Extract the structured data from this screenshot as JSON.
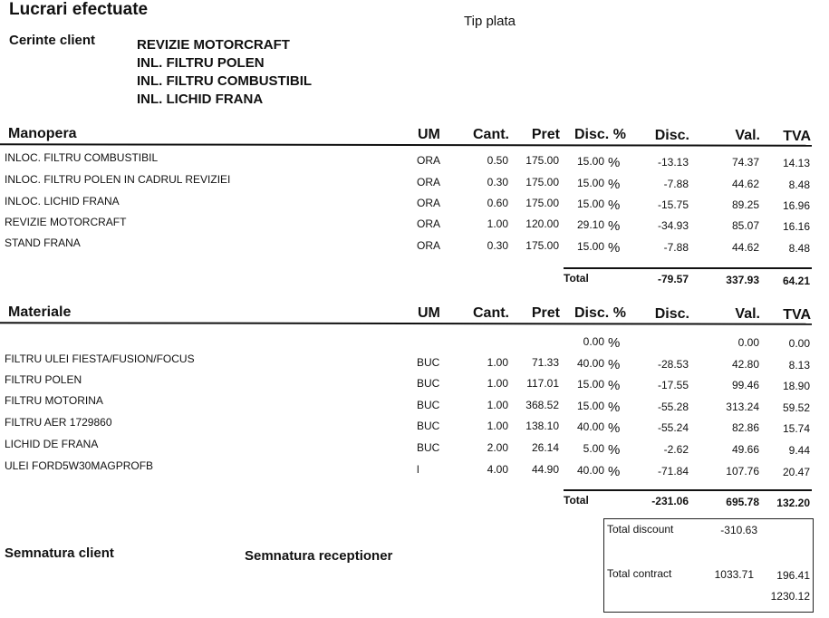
{
  "header": {
    "title": "Lucrari efectuate",
    "payment_type_label": "Tip plata",
    "client_requests_label": "Cerinte client",
    "client_requests": [
      "REVIZIE MOTORCRAFT",
      "INL. FILTRU POLEN",
      "INL. FILTRU COMBUSTIBIL",
      "INL. LICHID FRANA"
    ]
  },
  "columns": {
    "um": "UM",
    "cant": "Cant.",
    "pret": "Pret",
    "disc_pct": "Disc. %",
    "disc": "Disc.",
    "val": "Val.",
    "tva": "TVA"
  },
  "labor": {
    "title": "Manopera",
    "rows": [
      {
        "name": "INLOC. FILTRU COMBUSTIBIL",
        "um": "ORA",
        "cant": "0.50",
        "pret": "175.00",
        "disc_pct": "15.00",
        "pct": "%",
        "disc": "-13.13",
        "val": "74.37",
        "tva": "14.13"
      },
      {
        "name": "INLOC. FILTRU POLEN IN CADRUL REVIZIEI",
        "um": "ORA",
        "cant": "0.30",
        "pret": "175.00",
        "disc_pct": "15.00",
        "pct": "%",
        "disc": "-7.88",
        "val": "44.62",
        "tva": "8.48"
      },
      {
        "name": "INLOC. LICHID FRANA",
        "um": "ORA",
        "cant": "0.60",
        "pret": "175.00",
        "disc_pct": "15.00",
        "pct": "%",
        "disc": "-15.75",
        "val": "89.25",
        "tva": "16.96"
      },
      {
        "name": "REVIZIE MOTORCRAFT",
        "um": "ORA",
        "cant": "1.00",
        "pret": "120.00",
        "disc_pct": "29.10",
        "pct": "%",
        "disc": "-34.93",
        "val": "85.07",
        "tva": "16.16"
      },
      {
        "name": "STAND FRANA",
        "um": "ORA",
        "cant": "0.30",
        "pret": "175.00",
        "disc_pct": "15.00",
        "pct": "%",
        "disc": "-7.88",
        "val": "44.62",
        "tva": "8.48"
      }
    ],
    "total": {
      "label": "Total",
      "disc": "-79.57",
      "val": "337.93",
      "tva": "64.21"
    }
  },
  "materials": {
    "title": "Materiale",
    "rows": [
      {
        "name": "",
        "um": "",
        "cant": "",
        "pret": "",
        "disc_pct": "0.00",
        "pct": "%",
        "disc": "",
        "val": "0.00",
        "tva": "0.00"
      },
      {
        "name": "FILTRU ULEI FIESTA/FUSION/FOCUS",
        "um": "BUC",
        "cant": "1.00",
        "pret": "71.33",
        "disc_pct": "40.00",
        "pct": "%",
        "disc": "-28.53",
        "val": "42.80",
        "tva": "8.13"
      },
      {
        "name": "FILTRU POLEN",
        "um": "BUC",
        "cant": "1.00",
        "pret": "117.01",
        "disc_pct": "15.00",
        "pct": "%",
        "disc": "-17.55",
        "val": "99.46",
        "tva": "18.90"
      },
      {
        "name": "FILTRU MOTORINA",
        "um": "BUC",
        "cant": "1.00",
        "pret": "368.52",
        "disc_pct": "15.00",
        "pct": "%",
        "disc": "-55.28",
        "val": "313.24",
        "tva": "59.52"
      },
      {
        "name": "FILTRU AER 1729860",
        "um": "BUC",
        "cant": "1.00",
        "pret": "138.10",
        "disc_pct": "40.00",
        "pct": "%",
        "disc": "-55.24",
        "val": "82.86",
        "tva": "15.74"
      },
      {
        "name": "LICHID DE FRANA",
        "um": "BUC",
        "cant": "2.00",
        "pret": "26.14",
        "disc_pct": "5.00",
        "pct": "%",
        "disc": "-2.62",
        "val": "49.66",
        "tva": "9.44"
      },
      {
        "name": "ULEI FORD5W30MAGPROFB",
        "um": "l",
        "cant": "4.00",
        "pret": "44.90",
        "disc_pct": "40.00",
        "pct": "%",
        "disc": "-71.84",
        "val": "107.76",
        "tva": "20.47"
      }
    ],
    "total": {
      "label": "Total",
      "disc": "-231.06",
      "val": "695.78",
      "tva": "132.20"
    }
  },
  "summary": {
    "total_discount_label": "Total discount",
    "total_discount": "-310.63",
    "total_contract_label": "Total contract",
    "total_contract_net": "1033.71",
    "total_contract_tva": "196.41",
    "grand_total": "1230.12"
  },
  "signatures": {
    "client": "Semnatura client",
    "receptionist": "Semnatura receptioner"
  }
}
